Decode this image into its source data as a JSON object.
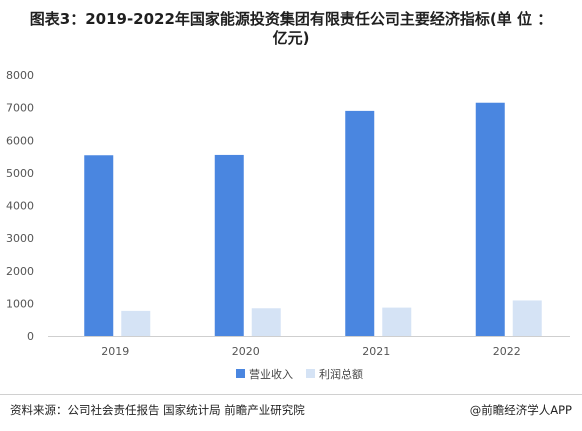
{
  "title_line1": "图表3：2019-2022年国家能源投资集团有限责任公司主要经济指标(单 位 ：",
  "title_line2": "亿元)",
  "source": "资料来源：公司社会责任报告 国家统计局 前瞻产业研究院",
  "brand": "@前瞻经济学人APP",
  "colors": {
    "revenue": "#4a86e0",
    "profit": "#d5e3f5",
    "axis_text": "#555555",
    "grid": "#e6e6e6"
  },
  "chart_data": {
    "type": "bar",
    "categories": [
      "2019",
      "2020",
      "2021",
      "2022"
    ],
    "series": [
      {
        "name": "营业收入",
        "values": [
          5540,
          5550,
          6900,
          7150
        ]
      },
      {
        "name": "利润总额",
        "values": [
          770,
          850,
          870,
          1090
        ]
      }
    ],
    "ylim": [
      0,
      8000
    ],
    "yticks": [
      0,
      1000,
      2000,
      3000,
      4000,
      5000,
      6000,
      7000,
      8000
    ],
    "legend": "bottom-center",
    "grid": false
  }
}
